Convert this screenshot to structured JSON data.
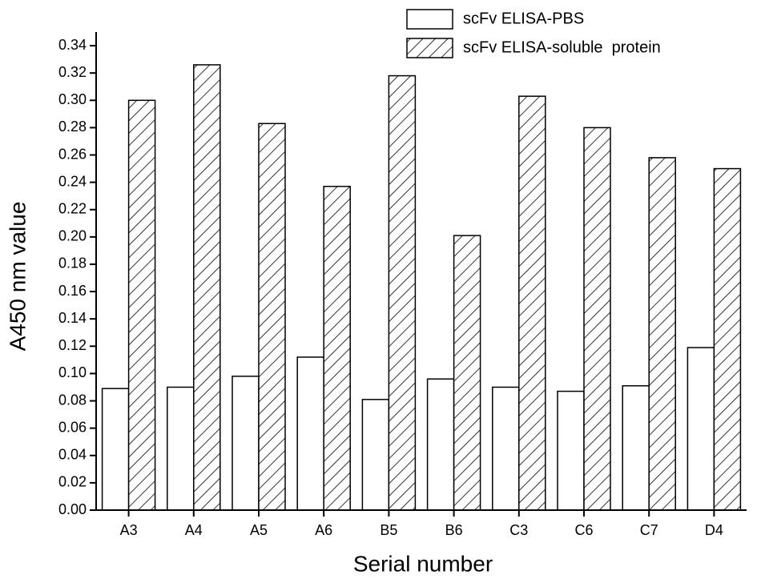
{
  "chart_data": {
    "type": "bar",
    "xlabel": "Serial number",
    "ylabel": "A450 nm value",
    "categories": [
      "A3",
      "A4",
      "A5",
      "A6",
      "B5",
      "B6",
      "C3",
      "C6",
      "C7",
      "D4"
    ],
    "series": [
      {
        "name": "scFv ELISA-PBS",
        "color": "#ffffff",
        "pattern": "solid",
        "values": [
          0.089,
          0.09,
          0.098,
          0.112,
          0.081,
          0.096,
          0.09,
          0.087,
          0.091,
          0.119
        ]
      },
      {
        "name": "scFv ELISA-soluble  protein",
        "color": "#ffffff",
        "pattern": "hatch",
        "values": [
          0.3,
          0.326,
          0.283,
          0.237,
          0.318,
          0.201,
          0.303,
          0.28,
          0.258,
          0.25
        ]
      }
    ],
    "ylim": [
      0,
      0.35
    ],
    "yticks": [
      {
        "value": 0,
        "label": "0.00"
      },
      {
        "value": 0.02,
        "label": "0.02"
      },
      {
        "value": 0.04,
        "label": "0.04"
      },
      {
        "value": 0.06,
        "label": "0.06"
      },
      {
        "value": 0.08,
        "label": "0.08"
      },
      {
        "value": 0.1,
        "label": "0.10"
      },
      {
        "value": 0.12,
        "label": "0.12"
      },
      {
        "value": 0.14,
        "label": "0.14"
      },
      {
        "value": 0.16,
        "label": "0.16"
      },
      {
        "value": 0.18,
        "label": "0.18"
      },
      {
        "value": 0.2,
        "label": "0.20"
      },
      {
        "value": 0.22,
        "label": "0.22"
      },
      {
        "value": 0.24,
        "label": "0.24"
      },
      {
        "value": 0.26,
        "label": "0.26"
      },
      {
        "value": 0.28,
        "label": "0.28"
      },
      {
        "value": 0.3,
        "label": "0.30"
      },
      {
        "value": 0.32,
        "label": "0.32"
      },
      {
        "value": 0.34,
        "label": "0.34"
      }
    ],
    "grid": false,
    "legend": "top-right"
  }
}
